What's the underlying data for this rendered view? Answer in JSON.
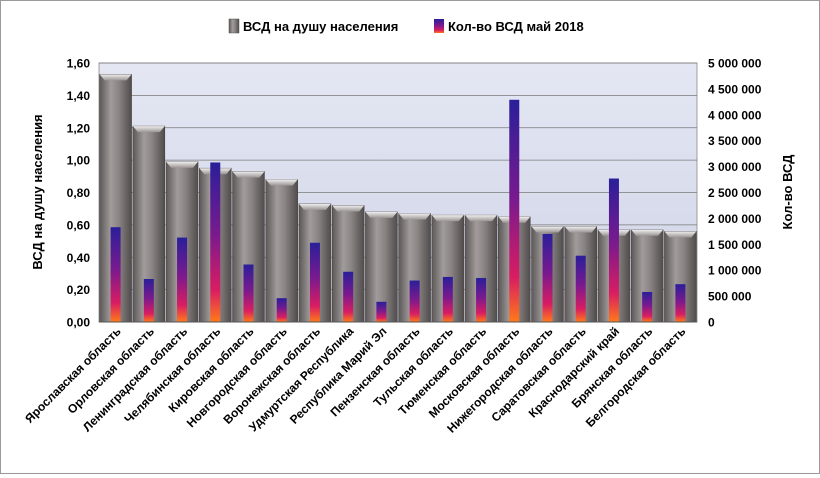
{
  "chart_data": {
    "type": "bar",
    "legend": {
      "placement": "top",
      "entries": [
        "ВСД на душу населения",
        "Кол-во ВСД май  2018"
      ]
    },
    "grid": true,
    "categories": [
      "Ярославская область",
      "Орловская область",
      "Ленинградская область",
      "Челябинская область",
      "Кировская область",
      "Новгородская область",
      "Воронежская область",
      "Удмуртская Республика",
      "Республика Марий Эл",
      "Пензенская область",
      "Тульская область",
      "Тюменская область",
      "Московская область",
      "Нижегородская область",
      "Саратовская область",
      "Краснодарский край",
      "Брянская область",
      "Белгородская область"
    ],
    "left_axis": {
      "label": "ВСД на душу населения",
      "ylim": [
        0,
        1.6
      ],
      "ticks": [
        "0,00",
        "0,20",
        "0,40",
        "0,60",
        "0,80",
        "1,00",
        "1,20",
        "1,40",
        "1,60"
      ]
    },
    "right_axis": {
      "label": "Кол-во ВСД",
      "ylim": [
        0,
        5000000
      ],
      "ticks": [
        "0",
        "500 000",
        "1 000 000",
        "1 500 000",
        "2 000 000",
        "2 500 000",
        "3 000 000",
        "3 500 000",
        "4 000 000",
        "4 500 000",
        "5 000 000"
      ]
    },
    "series": [
      {
        "name": "ВСД на душу населения",
        "axis": "left",
        "color": "#7a7474",
        "values": [
          1.53,
          1.21,
          0.99,
          0.95,
          0.93,
          0.88,
          0.73,
          0.72,
          0.68,
          0.67,
          0.66,
          0.66,
          0.65,
          0.59,
          0.59,
          0.57,
          0.57,
          0.56
        ]
      },
      {
        "name": "Кол-во ВСД май  2018",
        "axis": "right",
        "color": "#4a1a8a",
        "values": [
          1830000,
          830000,
          1630000,
          3080000,
          1110000,
          460000,
          1530000,
          970000,
          390000,
          800000,
          870000,
          850000,
          4290000,
          1700000,
          1280000,
          2770000,
          580000,
          730000
        ]
      }
    ]
  }
}
